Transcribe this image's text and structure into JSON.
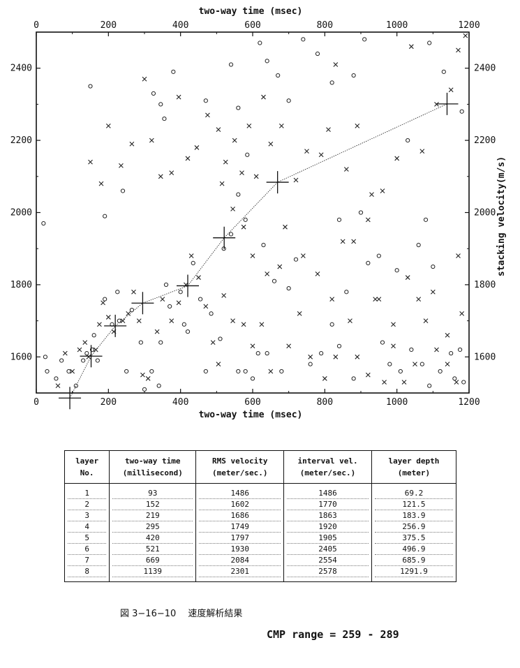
{
  "chart_data": {
    "type": "scatter",
    "title": "",
    "xlabel": "two-way time (msec)",
    "ylabel": "stacking velocity(m/s)",
    "xlim": [
      0,
      1200
    ],
    "ylim": [
      1500,
      2500
    ],
    "x_ticks": [
      "0",
      "200",
      "400",
      "600",
      "800",
      "1000",
      "1200"
    ],
    "y_ticks": [
      "1600",
      "1800",
      "2000",
      "2200",
      "2400"
    ],
    "picked_velocity_function": {
      "x": [
        93,
        152,
        219,
        295,
        420,
        521,
        669,
        1139
      ],
      "y": [
        1486,
        1602,
        1686,
        1749,
        1797,
        1930,
        2084,
        2301
      ]
    },
    "semblance_symbols_circle": [
      [
        20,
        1970
      ],
      [
        25,
        1600
      ],
      [
        30,
        1560
      ],
      [
        55,
        1540
      ],
      [
        70,
        1590
      ],
      [
        90,
        1560
      ],
      [
        110,
        1520
      ],
      [
        130,
        1590
      ],
      [
        140,
        1610
      ],
      [
        155,
        1620
      ],
      [
        170,
        1590
      ],
      [
        160,
        1660
      ],
      [
        190,
        1760
      ],
      [
        210,
        1690
      ],
      [
        230,
        1700
      ],
      [
        225,
        1780
      ],
      [
        250,
        1560
      ],
      [
        265,
        1730
      ],
      [
        290,
        1640
      ],
      [
        300,
        1510
      ],
      [
        320,
        1560
      ],
      [
        340,
        1520
      ],
      [
        345,
        1640
      ],
      [
        360,
        1800
      ],
      [
        370,
        1740
      ],
      [
        400,
        1780
      ],
      [
        410,
        1690
      ],
      [
        420,
        1670
      ],
      [
        435,
        1860
      ],
      [
        455,
        1760
      ],
      [
        470,
        1560
      ],
      [
        485,
        1720
      ],
      [
        510,
        1650
      ],
      [
        520,
        1900
      ],
      [
        540,
        1940
      ],
      [
        560,
        1560
      ],
      [
        580,
        1560
      ],
      [
        600,
        1540
      ],
      [
        615,
        1610
      ],
      [
        640,
        1610
      ],
      [
        660,
        1810
      ],
      [
        680,
        1560
      ],
      [
        720,
        1870
      ],
      [
        760,
        1580
      ],
      [
        790,
        1610
      ],
      [
        820,
        1690
      ],
      [
        840,
        1630
      ],
      [
        860,
        1780
      ],
      [
        880,
        1540
      ],
      [
        920,
        1860
      ],
      [
        950,
        1880
      ],
      [
        960,
        1640
      ],
      [
        980,
        1580
      ],
      [
        1000,
        1840
      ],
      [
        1010,
        1560
      ],
      [
        1040,
        1620
      ],
      [
        1070,
        1580
      ],
      [
        1090,
        1520
      ],
      [
        1120,
        1560
      ],
      [
        1150,
        1610
      ],
      [
        1160,
        1540
      ],
      [
        1175,
        1620
      ],
      [
        1185,
        1530
      ],
      [
        325,
        2330
      ],
      [
        345,
        2300
      ],
      [
        355,
        2260
      ],
      [
        380,
        2390
      ],
      [
        470,
        2310
      ],
      [
        540,
        2410
      ],
      [
        560,
        2290
      ],
      [
        585,
        2160
      ],
      [
        620,
        2470
      ],
      [
        640,
        2420
      ],
      [
        670,
        2380
      ],
      [
        700,
        2310
      ],
      [
        740,
        2480
      ],
      [
        780,
        2440
      ],
      [
        820,
        2360
      ],
      [
        880,
        2380
      ],
      [
        910,
        2480
      ],
      [
        1030,
        2200
      ],
      [
        1090,
        2470
      ],
      [
        1130,
        2390
      ],
      [
        1180,
        2280
      ],
      [
        240,
        2060
      ],
      [
        150,
        2350
      ],
      [
        190,
        1990
      ],
      [
        560,
        2050
      ],
      [
        580,
        1980
      ],
      [
        630,
        1910
      ],
      [
        700,
        1790
      ],
      [
        840,
        1980
      ],
      [
        900,
        2000
      ],
      [
        1080,
        1980
      ],
      [
        1100,
        1850
      ],
      [
        1060,
        1910
      ]
    ],
    "semblance_symbols_x": [
      [
        60,
        1520
      ],
      [
        80,
        1610
      ],
      [
        100,
        1560
      ],
      [
        120,
        1620
      ],
      [
        135,
        1640
      ],
      [
        145,
        1600
      ],
      [
        165,
        1620
      ],
      [
        175,
        1690
      ],
      [
        185,
        1750
      ],
      [
        200,
        1710
      ],
      [
        215,
        1670
      ],
      [
        240,
        1700
      ],
      [
        255,
        1720
      ],
      [
        270,
        1780
      ],
      [
        285,
        1700
      ],
      [
        295,
        1550
      ],
      [
        310,
        1540
      ],
      [
        335,
        1670
      ],
      [
        350,
        1760
      ],
      [
        375,
        1700
      ],
      [
        395,
        1750
      ],
      [
        415,
        1800
      ],
      [
        430,
        1880
      ],
      [
        450,
        1820
      ],
      [
        470,
        1740
      ],
      [
        490,
        1640
      ],
      [
        505,
        1580
      ],
      [
        520,
        1770
      ],
      [
        545,
        1700
      ],
      [
        575,
        1690
      ],
      [
        600,
        1630
      ],
      [
        625,
        1690
      ],
      [
        650,
        1560
      ],
      [
        675,
        1850
      ],
      [
        700,
        1630
      ],
      [
        730,
        1720
      ],
      [
        760,
        1600
      ],
      [
        800,
        1540
      ],
      [
        830,
        1600
      ],
      [
        850,
        1920
      ],
      [
        870,
        1700
      ],
      [
        890,
        1600
      ],
      [
        920,
        1550
      ],
      [
        940,
        1760
      ],
      [
        965,
        1530
      ],
      [
        990,
        1630
      ],
      [
        1020,
        1530
      ],
      [
        1050,
        1580
      ],
      [
        1080,
        1700
      ],
      [
        1110,
        1620
      ],
      [
        1140,
        1580
      ],
      [
        1165,
        1530
      ],
      [
        1180,
        1720
      ],
      [
        150,
        2140
      ],
      [
        180,
        2080
      ],
      [
        200,
        2240
      ],
      [
        235,
        2130
      ],
      [
        265,
        2190
      ],
      [
        300,
        2370
      ],
      [
        320,
        2200
      ],
      [
        345,
        2100
      ],
      [
        375,
        2110
      ],
      [
        395,
        2320
      ],
      [
        420,
        2150
      ],
      [
        445,
        2180
      ],
      [
        475,
        2270
      ],
      [
        505,
        2230
      ],
      [
        525,
        2140
      ],
      [
        550,
        2200
      ],
      [
        570,
        2110
      ],
      [
        590,
        2240
      ],
      [
        610,
        2100
      ],
      [
        630,
        2320
      ],
      [
        650,
        2190
      ],
      [
        680,
        2240
      ],
      [
        720,
        2090
      ],
      [
        750,
        2170
      ],
      [
        790,
        2160
      ],
      [
        810,
        2230
      ],
      [
        830,
        2410
      ],
      [
        860,
        2120
      ],
      [
        890,
        2240
      ],
      [
        930,
        2050
      ],
      [
        960,
        2060
      ],
      [
        1000,
        2150
      ],
      [
        1040,
        2460
      ],
      [
        1070,
        2170
      ],
      [
        1110,
        2300
      ],
      [
        1150,
        2340
      ],
      [
        1170,
        2450
      ],
      [
        1190,
        2490
      ],
      [
        515,
        2080
      ],
      [
        545,
        2010
      ],
      [
        575,
        1960
      ],
      [
        600,
        1880
      ],
      [
        640,
        1830
      ],
      [
        690,
        1960
      ],
      [
        740,
        1880
      ],
      [
        780,
        1830
      ],
      [
        820,
        1760
      ],
      [
        880,
        1920
      ],
      [
        920,
        1980
      ],
      [
        950,
        1760
      ],
      [
        990,
        1690
      ],
      [
        1030,
        1820
      ],
      [
        1060,
        1760
      ],
      [
        1100,
        1780
      ],
      [
        1140,
        1660
      ],
      [
        1170,
        1880
      ]
    ]
  },
  "table": {
    "headers": [
      {
        "line1": "layer",
        "line2": "No."
      },
      {
        "line1": "two-way time",
        "line2": "(millisecond)"
      },
      {
        "line1": "RMS velocity",
        "line2": "(meter/sec.)"
      },
      {
        "line1": "interval vel.",
        "line2": "(meter/sec.)"
      },
      {
        "line1": "layer depth",
        "line2": "(meter)"
      }
    ],
    "layer_no": [
      "1",
      "2",
      "3",
      "4",
      "5",
      "6",
      "7",
      "8"
    ],
    "two_way_time": [
      "93",
      "152",
      "219",
      "295",
      "420",
      "521",
      "669",
      "1139"
    ],
    "rms_velocity": [
      "1486",
      "1602",
      "1686",
      "1749",
      "1797",
      "1930",
      "2084",
      "2301"
    ],
    "interval_vel": [
      "1486",
      "1770",
      "1863",
      "1920",
      "1905",
      "2405",
      "2554",
      "2578"
    ],
    "layer_depth": [
      "69.2",
      "121.5",
      "183.9",
      "256.9",
      "375.5",
      "496.9",
      "685.9",
      "1291.9"
    ]
  },
  "caption": "図 3−16−10　 速度解析結果",
  "cmp_range": "CMP range = 259 - 289"
}
